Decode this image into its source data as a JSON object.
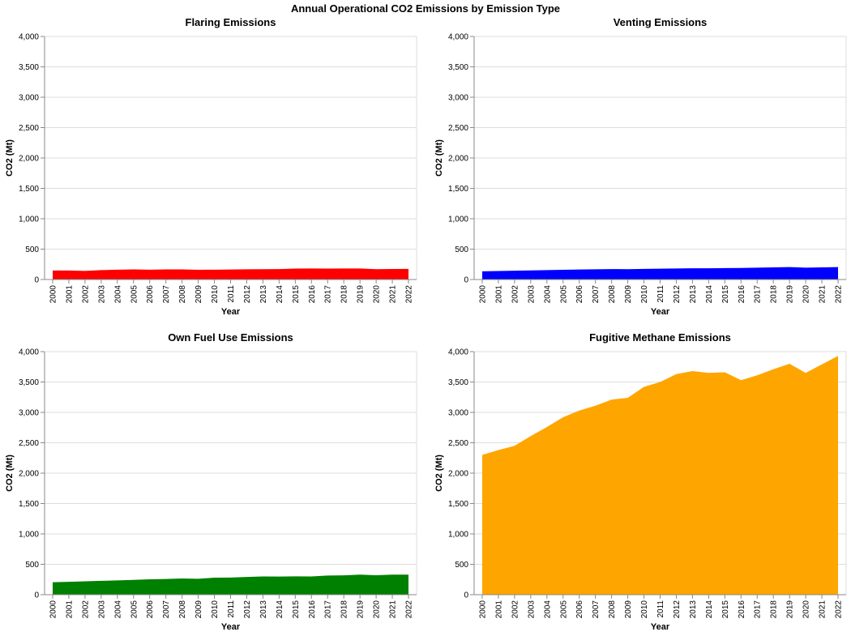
{
  "figure": {
    "title": "Annual Operational CO2 Emissions by Emission Type"
  },
  "chart_data": [
    {
      "type": "area",
      "title": "Flaring Emissions",
      "xlabel": "Year",
      "ylabel": "CO2 (Mt)",
      "color": "#ff0000",
      "ylim": [
        0,
        4000
      ],
      "yticks": [
        "0",
        "500",
        "1,000",
        "1,500",
        "2,000",
        "2,500",
        "3,000",
        "3,500",
        "4,000"
      ],
      "x": [
        "2000",
        "2001",
        "2002",
        "2003",
        "2004",
        "2005",
        "2006",
        "2007",
        "2008",
        "2009",
        "2010",
        "2011",
        "2012",
        "2013",
        "2014",
        "2015",
        "2016",
        "2017",
        "2018",
        "2019",
        "2020",
        "2021",
        "2022"
      ],
      "values": [
        148,
        148,
        142,
        155,
        162,
        166,
        162,
        166,
        166,
        160,
        162,
        165,
        168,
        170,
        172,
        180,
        182,
        180,
        182,
        182,
        170,
        174,
        175
      ]
    },
    {
      "type": "area",
      "title": "Venting Emissions",
      "xlabel": "Year",
      "ylabel": "CO2 (Mt)",
      "color": "#0000ff",
      "ylim": [
        0,
        4000
      ],
      "yticks": [
        "0",
        "500",
        "1,000",
        "1,500",
        "2,000",
        "2,500",
        "3,000",
        "3,500",
        "4,000"
      ],
      "x": [
        "2000",
        "2001",
        "2002",
        "2003",
        "2004",
        "2005",
        "2006",
        "2007",
        "2008",
        "2009",
        "2010",
        "2011",
        "2012",
        "2013",
        "2014",
        "2015",
        "2016",
        "2017",
        "2018",
        "2019",
        "2020",
        "2021",
        "2022"
      ],
      "values": [
        135,
        140,
        145,
        150,
        155,
        160,
        165,
        168,
        172,
        170,
        175,
        178,
        182,
        185,
        185,
        188,
        190,
        195,
        200,
        205,
        195,
        200,
        205
      ]
    },
    {
      "type": "area",
      "title": "Own Fuel Use Emissions",
      "xlabel": "Year",
      "ylabel": "CO2 (Mt)",
      "color": "#008000",
      "ylim": [
        0,
        4000
      ],
      "yticks": [
        "0",
        "500",
        "1,000",
        "1,500",
        "2,000",
        "2,500",
        "3,000",
        "3,500",
        "4,000"
      ],
      "x": [
        "2000",
        "2001",
        "2002",
        "2003",
        "2004",
        "2005",
        "2006",
        "2007",
        "2008",
        "2009",
        "2010",
        "2011",
        "2012",
        "2013",
        "2014",
        "2015",
        "2016",
        "2017",
        "2018",
        "2019",
        "2020",
        "2021",
        "2022"
      ],
      "values": [
        205,
        212,
        220,
        228,
        235,
        244,
        254,
        258,
        266,
        262,
        280,
        282,
        292,
        300,
        298,
        302,
        300,
        315,
        318,
        330,
        320,
        330,
        330
      ]
    },
    {
      "type": "area",
      "title": "Fugitive Methane Emissions",
      "xlabel": "Year",
      "ylabel": "CO2 (Mt)",
      "color": "#ffa500",
      "ylim": [
        0,
        4000
      ],
      "yticks": [
        "0",
        "500",
        "1,000",
        "1,500",
        "2,000",
        "2,500",
        "3,000",
        "3,500",
        "4,000"
      ],
      "x": [
        "2000",
        "2001",
        "2002",
        "2003",
        "2004",
        "2005",
        "2006",
        "2007",
        "2008",
        "2009",
        "2010",
        "2011",
        "2012",
        "2013",
        "2014",
        "2015",
        "2016",
        "2017",
        "2018",
        "2019",
        "2020",
        "2021",
        "2022"
      ],
      "values": [
        2300,
        2380,
        2450,
        2610,
        2760,
        2920,
        3030,
        3110,
        3210,
        3240,
        3420,
        3500,
        3630,
        3680,
        3650,
        3660,
        3530,
        3610,
        3710,
        3800,
        3650,
        3790,
        3930
      ]
    }
  ]
}
